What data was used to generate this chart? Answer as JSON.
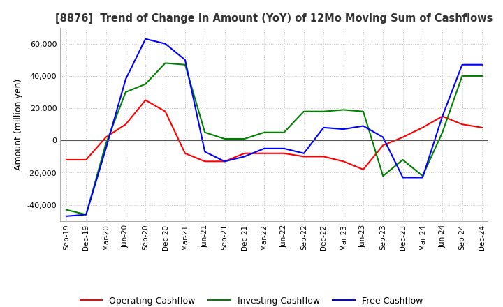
{
  "title": "[8876]  Trend of Change in Amount (YoY) of 12Mo Moving Sum of Cashflows",
  "ylabel": "Amount (million yen)",
  "background_color": "#ffffff",
  "grid_color": "#c8c8c8",
  "x_labels": [
    "Sep-19",
    "Dec-19",
    "Mar-20",
    "Jun-20",
    "Sep-20",
    "Dec-20",
    "Mar-21",
    "Jun-21",
    "Sep-21",
    "Dec-21",
    "Mar-22",
    "Jun-22",
    "Sep-22",
    "Dec-22",
    "Mar-23",
    "Jun-23",
    "Sep-23",
    "Dec-23",
    "Mar-24",
    "Jun-24",
    "Sep-24",
    "Dec-24"
  ],
  "operating": [
    -12000,
    -12000,
    2000,
    10000,
    25000,
    18000,
    -8000,
    -13000,
    -13000,
    -8000,
    -8000,
    -8000,
    -10000,
    -10000,
    -13000,
    -18000,
    -3000,
    2000,
    8000,
    15000,
    10000,
    8000
  ],
  "investing": [
    -43000,
    -46000,
    -2000,
    30000,
    35000,
    48000,
    47000,
    5000,
    1000,
    1000,
    5000,
    5000,
    18000,
    18000,
    19000,
    18000,
    -22000,
    -12000,
    -22000,
    5000,
    40000,
    40000
  ],
  "free_cashflow": [
    -47000,
    -46000,
    -5000,
    38000,
    63000,
    60000,
    50000,
    -7000,
    -13000,
    -10000,
    -5000,
    -5000,
    -8000,
    8000,
    7000,
    9000,
    2000,
    -23000,
    -23000,
    15000,
    47000,
    47000
  ],
  "ylim": [
    -50000,
    70000
  ],
  "yticks": [
    -40000,
    -20000,
    0,
    20000,
    40000,
    60000
  ],
  "line_colors": {
    "operating": "#ff0000",
    "investing": "#008000",
    "free_cashflow": "#0000ff"
  },
  "legend_labels": [
    "Operating Cashflow",
    "Investing Cashflow",
    "Free Cashflow"
  ]
}
